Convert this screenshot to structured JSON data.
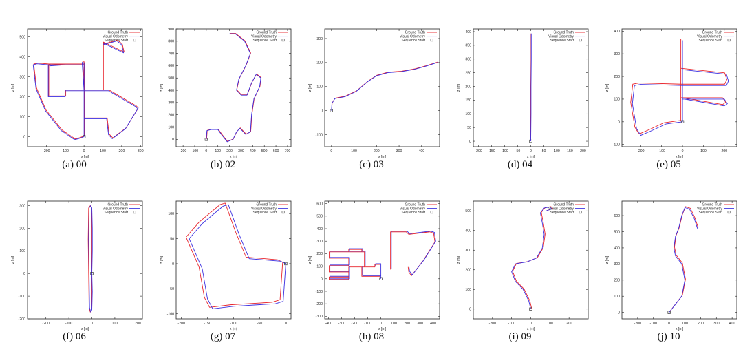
{
  "legend": {
    "ground_truth": "Ground Truth",
    "visual_odometry": "Visual Odometry",
    "sequence_start": "Sequence Start"
  },
  "colors": {
    "ground_truth": "#e8242b",
    "visual_odometry": "#3b2fe0",
    "axis": "#222222"
  },
  "chart_data": [
    {
      "type": "line",
      "caption": "(a) 00",
      "xlabel": "x [m]",
      "ylabel": "z [m]",
      "xlim": [
        -300,
        310
      ],
      "ylim": [
        -50,
        540
      ],
      "xticks": [
        -200,
        -100,
        0,
        100,
        200,
        300
      ],
      "yticks": [
        0,
        100,
        200,
        300,
        400,
        500
      ],
      "paths": [
        [
          [
            0,
            0
          ],
          [
            0,
            90
          ],
          [
            0,
            230
          ],
          [
            -100,
            230
          ],
          [
            -100,
            200
          ],
          [
            -190,
            200
          ],
          [
            -190,
            360
          ],
          [
            -250,
            365
          ],
          [
            -270,
            360
          ],
          [
            -255,
            240
          ],
          [
            -205,
            130
          ],
          [
            -120,
            30
          ],
          [
            -50,
            -15
          ],
          [
            -30,
            -10
          ],
          [
            0,
            0
          ],
          [
            0,
            360
          ],
          [
            -100,
            360
          ],
          [
            -180,
            355
          ],
          [
            -190,
            360
          ],
          [
            0,
            360
          ],
          [
            0,
            370
          ],
          [
            -10,
            372
          ],
          [
            0,
            230
          ],
          [
            0,
            90
          ],
          [
            120,
            90
          ],
          [
            130,
            10
          ],
          [
            150,
            -10
          ],
          [
            220,
            40
          ],
          [
            285,
            140
          ],
          [
            275,
            150
          ],
          [
            130,
            230
          ],
          [
            100,
            230
          ],
          [
            100,
            470
          ],
          [
            210,
            420
          ],
          [
            200,
            460
          ],
          [
            175,
            480
          ],
          [
            100,
            460
          ],
          [
            100,
            230
          ],
          [
            0,
            230
          ],
          [
            0,
            90
          ],
          [
            0,
            0
          ]
        ]
      ],
      "gt_offset": [
        3,
        4
      ],
      "start": [
        0,
        0
      ]
    },
    {
      "type": "line",
      "caption": "(b) 02",
      "xlabel": "x [m]",
      "ylabel": "z [m]",
      "xlim": [
        -260,
        730
      ],
      "ylim": [
        -60,
        900
      ],
      "xticks": [
        -200,
        -100,
        0,
        100,
        200,
        300,
        400,
        500,
        600,
        700
      ],
      "yticks": [
        0,
        100,
        200,
        300,
        400,
        500,
        600,
        700,
        800,
        900
      ],
      "paths": [
        [
          [
            0,
            0
          ],
          [
            5,
            70
          ],
          [
            40,
            80
          ],
          [
            100,
            80
          ],
          [
            130,
            40
          ],
          [
            180,
            -20
          ],
          [
            230,
            0
          ],
          [
            260,
            60
          ],
          [
            290,
            90
          ],
          [
            320,
            60
          ],
          [
            340,
            40
          ],
          [
            380,
            60
          ],
          [
            390,
            200
          ],
          [
            410,
            330
          ],
          [
            460,
            430
          ],
          [
            470,
            500
          ],
          [
            430,
            530
          ],
          [
            390,
            460
          ],
          [
            350,
            360
          ],
          [
            300,
            360
          ],
          [
            260,
            400
          ],
          [
            280,
            490
          ],
          [
            340,
            600
          ],
          [
            380,
            700
          ],
          [
            330,
            800
          ],
          [
            250,
            860
          ],
          [
            200,
            860
          ]
        ]
      ],
      "gt_offset": [
        3,
        3
      ],
      "start": [
        0,
        0
      ]
    },
    {
      "type": "line",
      "caption": "(c) 03",
      "xlabel": "x [m]",
      "ylabel": "z [m]",
      "xlim": [
        -30,
        480
      ],
      "ylim": [
        -150,
        340
      ],
      "xticks": [
        0,
        100,
        200,
        300,
        400
      ],
      "yticks": [
        -100,
        0,
        100,
        200,
        300
      ],
      "paths": [
        [
          [
            0,
            0
          ],
          [
            2,
            30
          ],
          [
            15,
            50
          ],
          [
            60,
            58
          ],
          [
            110,
            80
          ],
          [
            160,
            120
          ],
          [
            200,
            145
          ],
          [
            250,
            158
          ],
          [
            310,
            162
          ],
          [
            370,
            172
          ],
          [
            420,
            185
          ],
          [
            470,
            200
          ]
        ]
      ],
      "gt_offset": [
        1,
        2
      ],
      "start": [
        0,
        0
      ]
    },
    {
      "type": "line",
      "caption": "(d) 04",
      "xlabel": "x [m]",
      "ylabel": "z [m]",
      "xlim": [
        -220,
        220
      ],
      "ylim": [
        -20,
        410
      ],
      "xticks": [
        -200,
        -150,
        -100,
        -50,
        0,
        50,
        100,
        150,
        200
      ],
      "yticks": [
        0,
        50,
        100,
        150,
        200,
        250,
        300,
        350,
        400
      ],
      "paths": [
        [
          [
            0,
            0
          ],
          [
            1,
            100
          ],
          [
            1,
            200
          ],
          [
            2,
            300
          ],
          [
            2,
            393
          ]
        ]
      ],
      "gt_offset": [
        -1,
        0
      ],
      "start": [
        0,
        0
      ]
    },
    {
      "type": "line",
      "caption": "(e) 05",
      "xlabel": "x [m]",
      "ylabel": "z [m]",
      "xlim": [
        -290,
        260
      ],
      "ylim": [
        -110,
        410
      ],
      "xticks": [
        -200,
        -100,
        0,
        100,
        200
      ],
      "yticks": [
        -100,
        0,
        100,
        200,
        300,
        400
      ],
      "paths": [
        [
          [
            0,
            360
          ],
          [
            0,
            230
          ],
          [
            210,
            210
          ],
          [
            220,
            180
          ],
          [
            210,
            160
          ],
          [
            0,
            160
          ],
          [
            -200,
            165
          ],
          [
            -230,
            160
          ],
          [
            -240,
            80
          ],
          [
            -220,
            -30
          ],
          [
            -200,
            -60
          ],
          [
            -150,
            -40
          ],
          [
            -80,
            -10
          ],
          [
            0,
            0
          ],
          [
            0,
            100
          ],
          [
            200,
            100
          ],
          [
            215,
            80
          ],
          [
            200,
            70
          ],
          [
            10,
            100
          ],
          [
            0,
            100
          ],
          [
            0,
            160
          ],
          [
            0,
            230
          ],
          [
            0,
            360
          ]
        ]
      ],
      "gt_offset": [
        -8,
        6
      ],
      "start": [
        0,
        0
      ]
    },
    {
      "type": "line",
      "caption": "(f) 06",
      "xlabel": "x [m]",
      "ylabel": "z [m]",
      "xlim": [
        -280,
        220
      ],
      "ylim": [
        -200,
        320
      ],
      "xticks": [
        -200,
        -100,
        0,
        100,
        200
      ],
      "yticks": [
        -200,
        -100,
        0,
        100,
        200,
        300
      ],
      "paths": [
        [
          [
            0,
            0
          ],
          [
            2,
            100
          ],
          [
            2,
            200
          ],
          [
            0,
            290
          ],
          [
            -5,
            300
          ],
          [
            -12,
            290
          ],
          [
            -14,
            150
          ],
          [
            -12,
            0
          ],
          [
            -10,
            -150
          ],
          [
            -5,
            -170
          ],
          [
            0,
            -160
          ],
          [
            2,
            -80
          ],
          [
            0,
            0
          ]
        ]
      ],
      "gt_offset": [
        -2,
        0
      ],
      "start": [
        0,
        0
      ]
    },
    {
      "type": "line",
      "caption": "(g) 07",
      "xlabel": "x [m]",
      "ylabel": "z [m]",
      "xlim": [
        -210,
        10
      ],
      "ylim": [
        -110,
        125
      ],
      "xticks": [
        -200,
        -150,
        -100,
        -50,
        0
      ],
      "yticks": [
        -100,
        -50,
        0,
        50,
        100
      ],
      "paths": [
        [
          [
            0,
            0
          ],
          [
            -10,
            5
          ],
          [
            -70,
            10
          ],
          [
            -90,
            60
          ],
          [
            -110,
            118
          ],
          [
            -120,
            115
          ],
          [
            -160,
            80
          ],
          [
            -185,
            50
          ],
          [
            -160,
            -10
          ],
          [
            -150,
            -70
          ],
          [
            -140,
            -90
          ],
          [
            -100,
            -85
          ],
          [
            -20,
            -80
          ],
          [
            -5,
            -75
          ],
          [
            0,
            0
          ]
        ]
      ],
      "gt_offset": [
        -6,
        3
      ],
      "start": [
        0,
        0
      ]
    },
    {
      "type": "line",
      "caption": "(h) 08",
      "xlabel": "x [m]",
      "ylabel": "z [m]",
      "xlim": [
        -430,
        450
      ],
      "ylim": [
        -320,
        620
      ],
      "xticks": [
        -400,
        -300,
        -200,
        -100,
        0,
        100,
        200,
        300,
        400
      ],
      "yticks": [
        -300,
        -200,
        -100,
        0,
        100,
        200,
        300,
        400,
        500,
        600
      ],
      "paths": [
        [
          [
            0,
            0
          ],
          [
            0,
            25
          ],
          [
            -140,
            25
          ],
          [
            -140,
            100
          ],
          [
            -120,
            100
          ],
          [
            -120,
            220
          ],
          [
            -240,
            220
          ],
          [
            -240,
            240
          ],
          [
            -140,
            240
          ],
          [
            -140,
            220
          ],
          [
            -390,
            220
          ],
          [
            -390,
            170
          ],
          [
            -240,
            170
          ],
          [
            -240,
            110
          ],
          [
            -390,
            110
          ],
          [
            -390,
            60
          ],
          [
            -240,
            60
          ],
          [
            -240,
            20
          ],
          [
            -390,
            20
          ],
          [
            -390,
            0
          ],
          [
            -240,
            0
          ],
          [
            -240,
            100
          ],
          [
            -40,
            100
          ],
          [
            -40,
            120
          ],
          [
            0,
            120
          ],
          [
            0,
            25
          ]
        ],
        [
          [
            80,
            80
          ],
          [
            80,
            380
          ],
          [
            200,
            380
          ],
          [
            220,
            360
          ],
          [
            380,
            380
          ],
          [
            410,
            370
          ],
          [
            420,
            300
          ],
          [
            330,
            150
          ],
          [
            240,
            30
          ],
          [
            220,
            60
          ],
          [
            215,
            100
          ]
        ]
      ],
      "gt_offset": [
        -6,
        -6
      ],
      "start": [
        0,
        0
      ]
    },
    {
      "type": "line",
      "caption": "(i) 09",
      "xlabel": "x [m]",
      "ylabel": "z [m]",
      "xlim": [
        -300,
        300
      ],
      "ylim": [
        -50,
        550
      ],
      "xticks": [
        -200,
        -100,
        0,
        100,
        200
      ],
      "yticks": [
        0,
        100,
        200,
        300,
        400,
        500
      ],
      "paths": [
        [
          [
            0,
            0
          ],
          [
            -10,
            40
          ],
          [
            -40,
            100
          ],
          [
            -80,
            140
          ],
          [
            -100,
            190
          ],
          [
            -80,
            230
          ],
          [
            -20,
            240
          ],
          [
            30,
            260
          ],
          [
            60,
            310
          ],
          [
            70,
            380
          ],
          [
            60,
            440
          ],
          [
            50,
            490
          ],
          [
            70,
            515
          ],
          [
            100,
            520
          ],
          [
            110,
            510
          ],
          [
            80,
            500
          ]
        ]
      ],
      "gt_offset": [
        5,
        2
      ],
      "start": [
        0,
        0
      ]
    },
    {
      "type": "line",
      "caption": "(j) 10",
      "xlabel": "x [m]",
      "ylabel": "z [m]",
      "xlim": [
        -300,
        430
      ],
      "ylim": [
        -40,
        690
      ],
      "xticks": [
        -200,
        -100,
        0,
        100,
        200,
        300,
        400
      ],
      "yticks": [
        0,
        100,
        200,
        300,
        400,
        500,
        600
      ],
      "paths": [
        [
          [
            0,
            0
          ],
          [
            40,
            50
          ],
          [
            80,
            100
          ],
          [
            100,
            200
          ],
          [
            80,
            300
          ],
          [
            40,
            350
          ],
          [
            30,
            400
          ],
          [
            40,
            470
          ],
          [
            60,
            520
          ],
          [
            80,
            600
          ],
          [
            100,
            650
          ],
          [
            130,
            640
          ],
          [
            160,
            580
          ],
          [
            180,
            520
          ]
        ]
      ],
      "gt_offset": [
        4,
        6
      ],
      "start": [
        0,
        0
      ]
    }
  ]
}
